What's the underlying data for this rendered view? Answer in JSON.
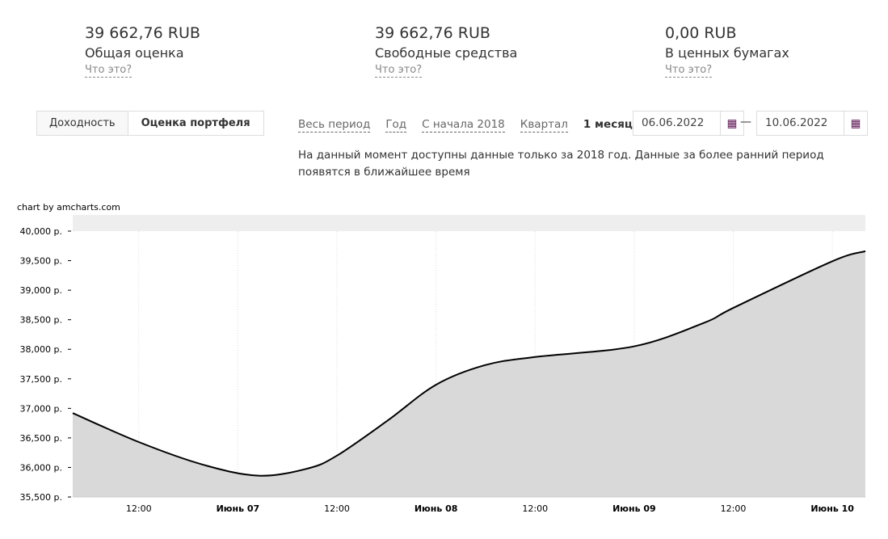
{
  "summary": [
    {
      "value": "39 662,76 RUB",
      "label": "Общая оценка",
      "help": "Что это?"
    },
    {
      "value": "39 662,76 RUB",
      "label": "Свободные средства",
      "help": "Что это?"
    },
    {
      "value": "0,00 RUB",
      "label": "В ценных бумагах",
      "help": "Что это?"
    }
  ],
  "tabs": [
    "Доходность",
    "Оценка портфеля"
  ],
  "periods": [
    "Весь период",
    "Год",
    "С начала 2018",
    "Квартал",
    "1 месяц"
  ],
  "date_from": "06.06.2022",
  "date_to": "10.06.2022",
  "date_sep": "—",
  "note": "На данный момент доступны данные только за 2018 год. Данные за более ранний период появятся в ближайшее время",
  "credit": "chart by amcharts.com",
  "chart_data": {
    "type": "area",
    "x_unit": "hours since 06.06.2022 00:00",
    "xlim": [
      4,
      100
    ],
    "ylim": [
      35500,
      40000
    ],
    "y_ticks": [
      35500,
      36000,
      36500,
      37000,
      37500,
      38000,
      38500,
      39000,
      39500,
      40000
    ],
    "y_tick_labels": [
      "35,500 р.",
      "36,000 р.",
      "36,500 р.",
      "37,000 р.",
      "37,500 р.",
      "38,000 р.",
      "38,500 р.",
      "39,000 р.",
      "39,500 р.",
      "40,000 р."
    ],
    "x_ticks": [
      12,
      24,
      36,
      48,
      60,
      72,
      84,
      96
    ],
    "x_tick_labels": [
      "12:00",
      "Июнь 07",
      "12:00",
      "Июнь 08",
      "12:00",
      "Июнь 09",
      "12:00",
      "Июнь 10"
    ],
    "x": [
      4,
      12,
      19.7,
      26.5,
      32.4,
      36,
      42.2,
      48,
      53.9,
      60,
      72,
      80.5,
      84,
      96,
      100
    ],
    "values": [
      36920,
      36430,
      36050,
      35860,
      35980,
      36200,
      36800,
      37400,
      37730,
      37870,
      38050,
      38450,
      38700,
      39490,
      39660
    ],
    "grid": "vertical dotted"
  }
}
